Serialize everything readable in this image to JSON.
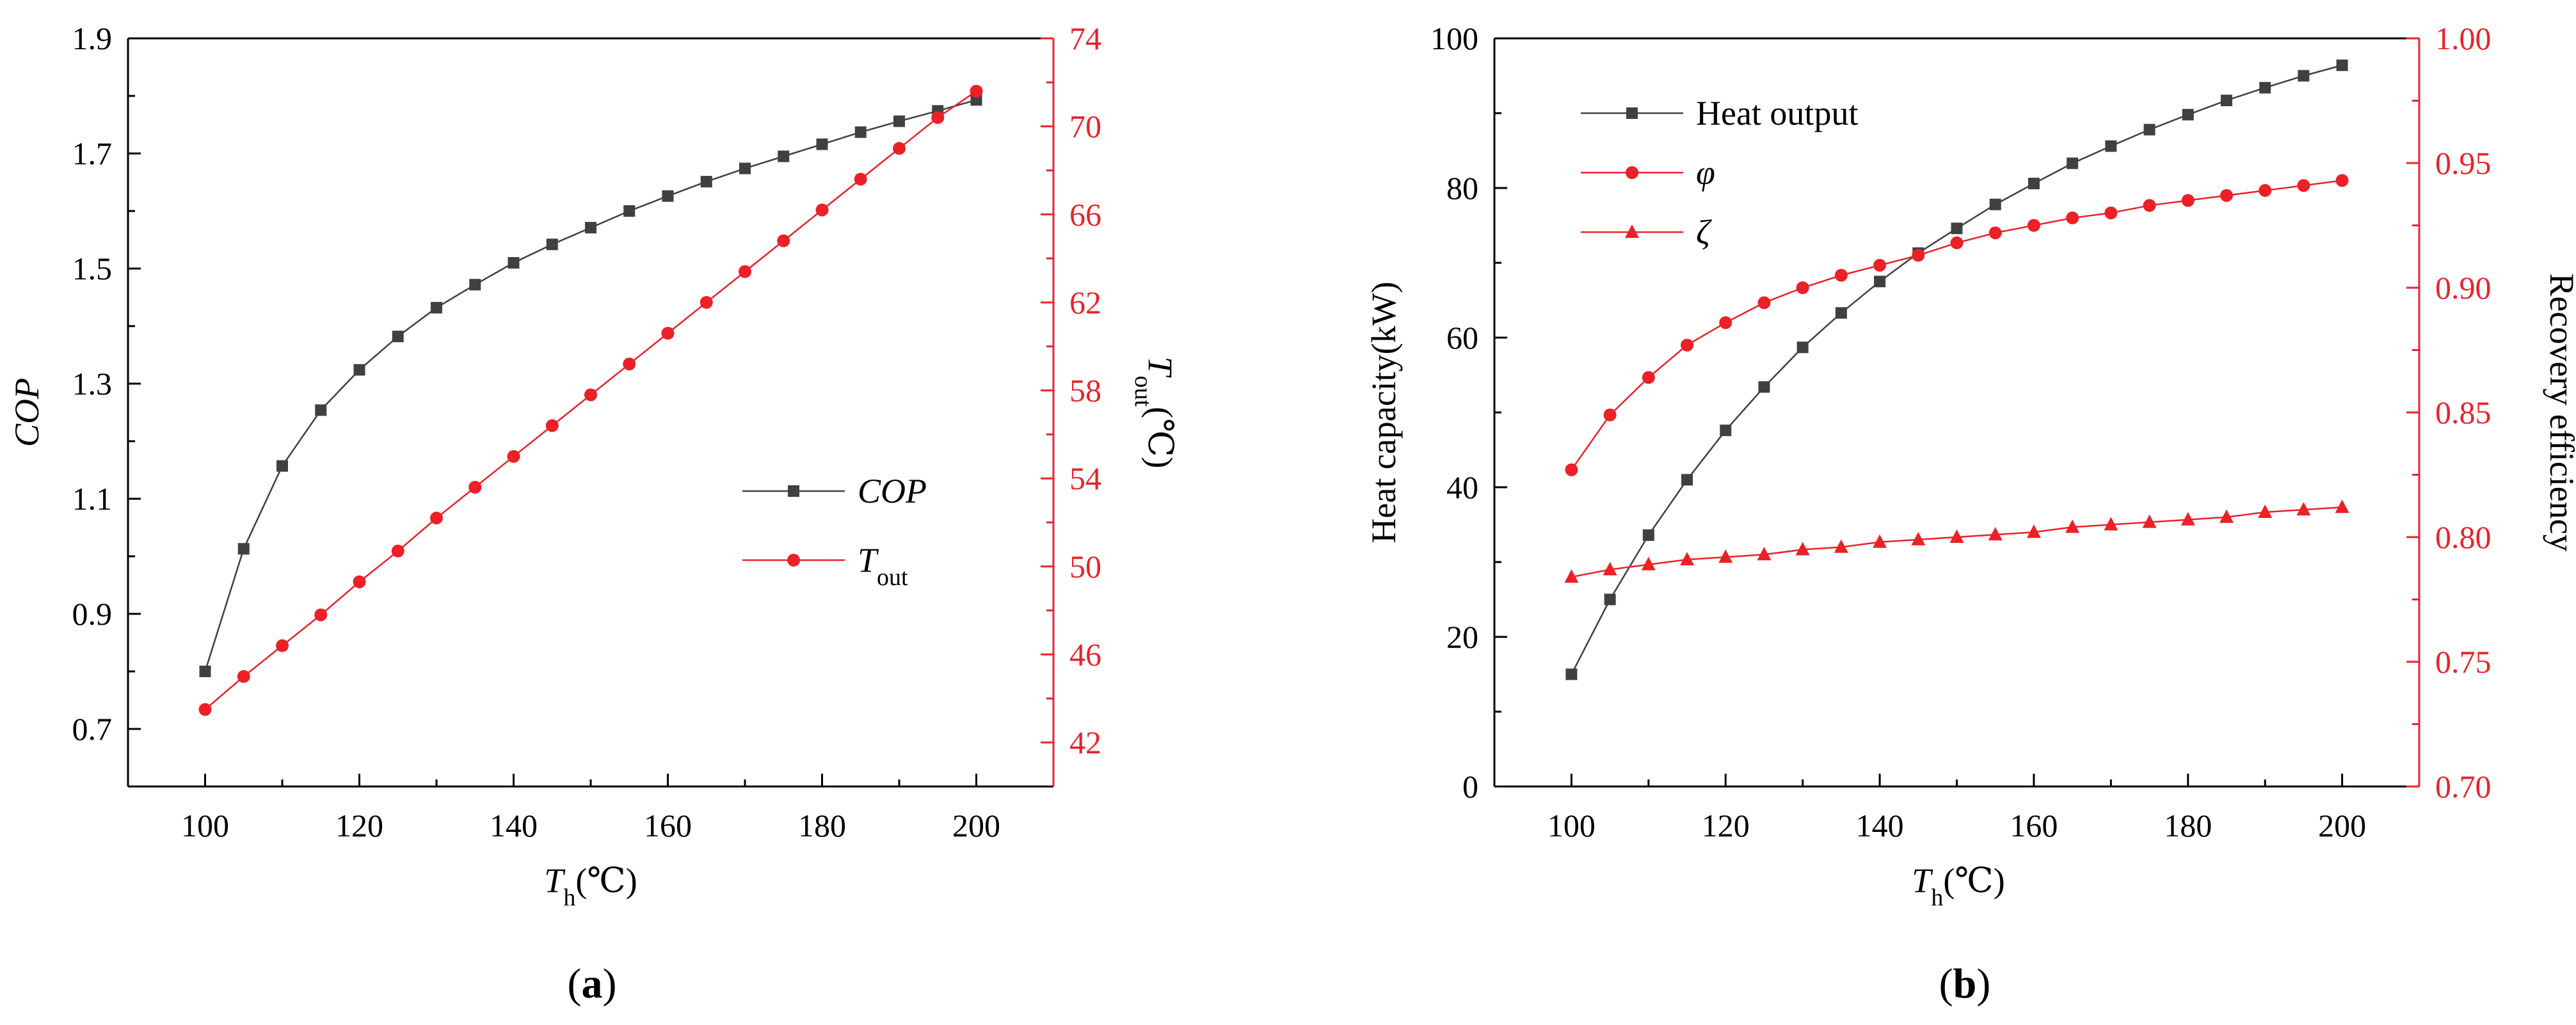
{
  "colors": {
    "black_series": "#404040",
    "red_series": "#ec2027",
    "red_axis": "#e8232b",
    "axis": "#000000",
    "background": "#ffffff"
  },
  "panels": [
    {
      "label_open": "(",
      "label_letter": "a",
      "label_close": ")"
    },
    {
      "label_open": "(",
      "label_letter": "b",
      "label_close": ")"
    }
  ],
  "chart_data": [
    {
      "type": "line",
      "panel": "a",
      "x": [
        100,
        105,
        110,
        115,
        120,
        125,
        130,
        135,
        140,
        145,
        150,
        155,
        160,
        165,
        170,
        175,
        180,
        185,
        190,
        195,
        200
      ],
      "xlim": [
        90,
        210
      ],
      "xticks": [
        100,
        120,
        140,
        160,
        180,
        200
      ],
      "xlabel": {
        "main": "T",
        "sub": "h",
        "unit": "(℃)"
      },
      "ylim_left": [
        0.6,
        1.9
      ],
      "yticks_left": [
        "0.7",
        "0.9",
        "1.1",
        "1.3",
        "1.5",
        "1.7",
        "1.9"
      ],
      "ylabel_left": "COP",
      "ylim_right": [
        40,
        74
      ],
      "yticks_right": [
        "42",
        "46",
        "50",
        "54",
        "58",
        "62",
        "66",
        "70",
        "74"
      ],
      "ylabel_right": {
        "main": "T",
        "sub": "out",
        "unit": "(℃)"
      },
      "legend_position": "center-right",
      "series": [
        {
          "name": "COP",
          "legend_main": "COP",
          "legend_sub": "",
          "axis": "left",
          "marker": "square",
          "color": "#404040",
          "values": [
            0.8,
            1.013,
            1.157,
            1.254,
            1.324,
            1.382,
            1.432,
            1.472,
            1.51,
            1.542,
            1.571,
            1.6,
            1.626,
            1.651,
            1.674,
            1.695,
            1.716,
            1.737,
            1.756,
            1.774,
            1.793
          ]
        },
        {
          "name": "Tout",
          "legend_main": "T",
          "legend_sub": "out",
          "axis": "right",
          "marker": "circle",
          "color": "#ec2027",
          "values": [
            43.5,
            45.0,
            46.4,
            47.8,
            49.3,
            50.7,
            52.2,
            53.6,
            55.0,
            56.4,
            57.8,
            59.2,
            60.6,
            62.0,
            63.4,
            64.8,
            66.2,
            67.6,
            69.0,
            70.4,
            71.6
          ]
        }
      ]
    },
    {
      "type": "line",
      "panel": "b",
      "x": [
        100,
        105,
        110,
        115,
        120,
        125,
        130,
        135,
        140,
        145,
        150,
        155,
        160,
        165,
        170,
        175,
        180,
        185,
        190,
        195,
        200
      ],
      "xlim": [
        90,
        210
      ],
      "xticks": [
        100,
        120,
        140,
        160,
        180,
        200
      ],
      "xlabel": {
        "main": "T",
        "sub": "h",
        "unit": "(℃)"
      },
      "ylim_left": [
        0,
        100
      ],
      "yticks_left": [
        "0",
        "20",
        "40",
        "60",
        "80",
        "100"
      ],
      "ylabel_left": "Heat capacity(kW)",
      "ylim_right": [
        0.7,
        1.0
      ],
      "yticks_right": [
        "0.70",
        "0.75",
        "0.80",
        "0.85",
        "0.90",
        "0.95",
        "1.00"
      ],
      "ylabel_right": {
        "main": "Recovery efficiency",
        "sub": "",
        "unit": ""
      },
      "legend_position": "top-left",
      "series": [
        {
          "name": "Heat output",
          "legend_main": "Heat output",
          "legend_sub": "",
          "axis": "left",
          "marker": "square",
          "color": "#404040",
          "values": [
            15.0,
            25.0,
            33.6,
            41.0,
            47.6,
            53.4,
            58.7,
            63.3,
            67.5,
            71.3,
            74.6,
            77.8,
            80.6,
            83.3,
            85.6,
            87.8,
            89.8,
            91.7,
            93.4,
            95.0,
            96.4
          ]
        },
        {
          "name": "φ",
          "legend_main": "φ",
          "legend_sub": "",
          "axis": "right",
          "marker": "circle",
          "color": "#ec2027",
          "values": [
            0.827,
            0.849,
            0.864,
            0.877,
            0.886,
            0.894,
            0.9,
            0.905,
            0.909,
            0.913,
            0.918,
            0.922,
            0.925,
            0.928,
            0.93,
            0.933,
            0.935,
            0.937,
            0.939,
            0.941,
            0.943
          ]
        },
        {
          "name": "ζ",
          "legend_main": "ζ",
          "legend_sub": "",
          "axis": "right",
          "marker": "triangle",
          "color": "#ec2027",
          "values": [
            0.784,
            0.787,
            0.789,
            0.791,
            0.792,
            0.793,
            0.795,
            0.796,
            0.798,
            0.799,
            0.8,
            0.801,
            0.802,
            0.804,
            0.805,
            0.806,
            0.807,
            0.808,
            0.81,
            0.811,
            0.812
          ]
        }
      ]
    }
  ]
}
